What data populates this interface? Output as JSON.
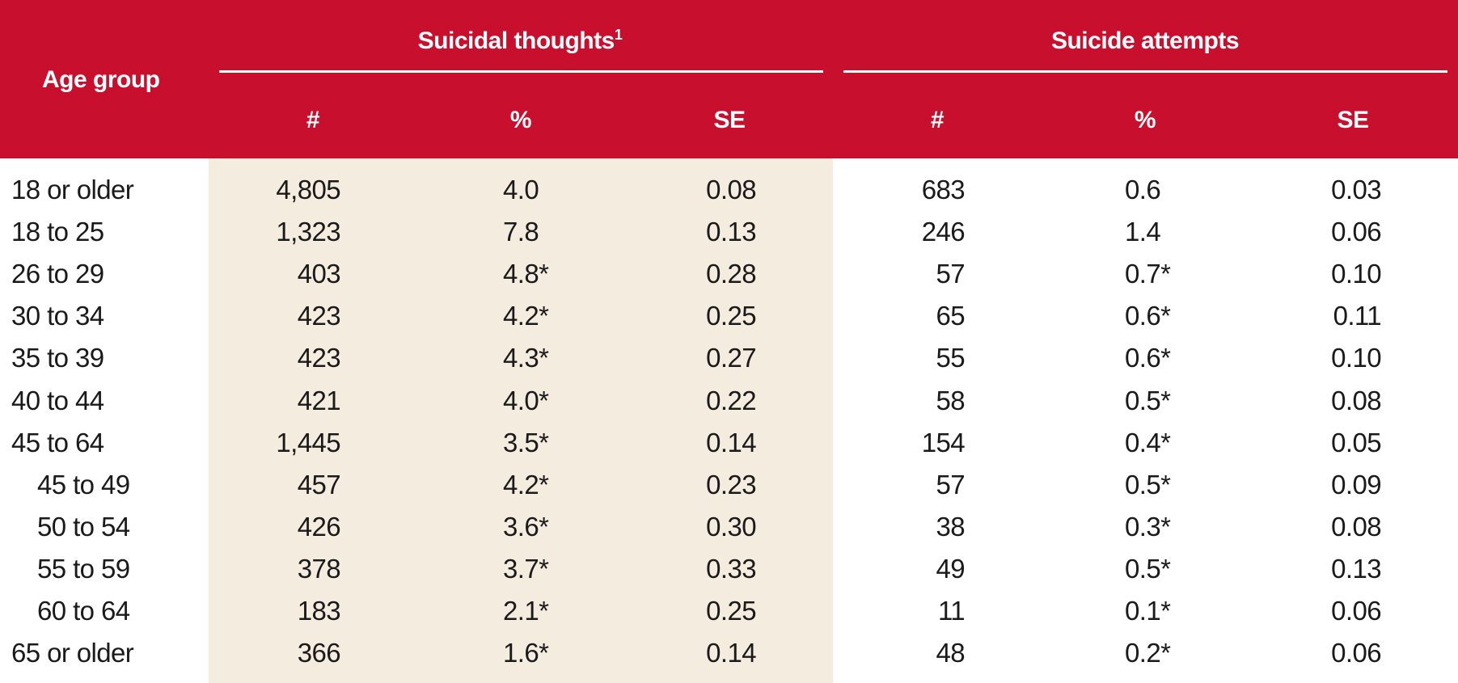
{
  "header": {
    "age_group": "Age group",
    "suicidal_thoughts": "Suicidal thoughts",
    "suicidal_thoughts_note": "1",
    "suicide_attempts": "Suicide attempts",
    "sub_count": "#",
    "sub_percent": "%",
    "sub_se": "SE"
  },
  "rows": [
    {
      "age": "18 or older",
      "t_count": "4,805",
      "t_pct": "4.0",
      "t_se": "0.08",
      "a_count": "683",
      "a_pct": "0.6",
      "a_se": "0.03",
      "indent": false
    },
    {
      "age": "18 to 25",
      "t_count": "1,323",
      "t_pct": "7.8",
      "t_se": "0.13",
      "a_count": "246",
      "a_pct": "1.4",
      "a_se": "0.06",
      "indent": false
    },
    {
      "age": "26 to 29",
      "t_count": "403",
      "t_pct": "4.8*",
      "t_se": "0.28",
      "a_count": "57",
      "a_pct": "0.7*",
      "a_se": "0.10",
      "indent": false
    },
    {
      "age": "30 to 34",
      "t_count": "423",
      "t_pct": "4.2*",
      "t_se": "0.25",
      "a_count": "65",
      "a_pct": "0.6*",
      "a_se": "0.11",
      "indent": false
    },
    {
      "age": "35 to 39",
      "t_count": "423",
      "t_pct": "4.3*",
      "t_se": "0.27",
      "a_count": "55",
      "a_pct": "0.6*",
      "a_se": "0.10",
      "indent": false
    },
    {
      "age": "40 to 44",
      "t_count": "421",
      "t_pct": "4.0*",
      "t_se": "0.22",
      "a_count": "58",
      "a_pct": "0.5*",
      "a_se": "0.08",
      "indent": false
    },
    {
      "age": "45 to 64",
      "t_count": "1,445",
      "t_pct": "3.5*",
      "t_se": "0.14",
      "a_count": "154",
      "a_pct": "0.4*",
      "a_se": "0.05",
      "indent": false
    },
    {
      "age": "45 to 49",
      "t_count": "457",
      "t_pct": "4.2*",
      "t_se": "0.23",
      "a_count": "57",
      "a_pct": "0.5*",
      "a_se": "0.09",
      "indent": true
    },
    {
      "age": "50 to 54",
      "t_count": "426",
      "t_pct": "3.6*",
      "t_se": "0.30",
      "a_count": "38",
      "a_pct": "0.3*",
      "a_se": "0.08",
      "indent": true
    },
    {
      "age": "55 to 59",
      "t_count": "378",
      "t_pct": "3.7*",
      "t_se": "0.33",
      "a_count": "49",
      "a_pct": "0.5*",
      "a_se": "0.13",
      "indent": true
    },
    {
      "age": "60 to 64",
      "t_count": "183",
      "t_pct": "2.1*",
      "t_se": "0.25",
      "a_count": "11",
      "a_pct": "0.1*",
      "a_se": "0.06",
      "indent": true
    },
    {
      "age": "65 or older",
      "t_count": "366",
      "t_pct": "1.6*",
      "t_se": "0.14",
      "a_count": "48",
      "a_pct": "0.2*",
      "a_se": "0.06",
      "indent": false
    }
  ]
}
